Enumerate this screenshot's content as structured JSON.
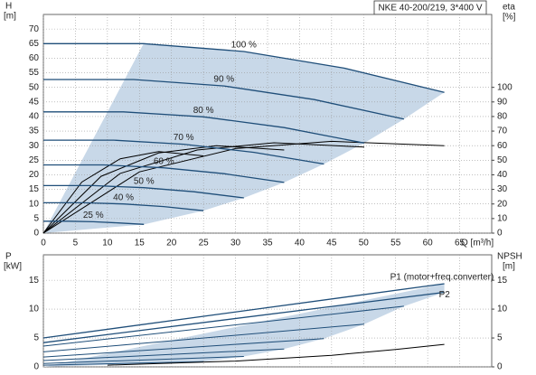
{
  "chart_data": [
    {
      "type": "line",
      "title": "NKE 40-200/219, 3*400 V",
      "y_label": "H",
      "y_unit": "[m]",
      "y2_label": "eta",
      "y2_unit": "[%]",
      "x_label": "Q [m³/h]",
      "xlim": [
        0,
        70
      ],
      "xticks": [
        0,
        5,
        10,
        15,
        20,
        25,
        30,
        35,
        40,
        45,
        50,
        55,
        60,
        65
      ],
      "x_tick_labels": true,
      "ylim": [
        0,
        75
      ],
      "yticks": [
        0,
        5,
        10,
        15,
        20,
        25,
        30,
        35,
        40,
        45,
        50,
        55,
        60,
        65,
        70
      ],
      "y2lim": [
        0,
        150
      ],
      "y2ticks": [
        0,
        10,
        20,
        30,
        40,
        50,
        60,
        70,
        80,
        90,
        100
      ],
      "grid": true,
      "color": "#1f4e79",
      "range_color": "#c8d8e8",
      "secondary_color": "#000000",
      "series": [
        {
          "name": "100 %",
          "x": [
            0,
            15.65,
            31.3,
            46.95,
            62.6
          ],
          "values": [
            65,
            65,
            62.3,
            56.6,
            48.3
          ]
        },
        {
          "name": "90 %",
          "x": [
            0,
            14.1,
            28.2,
            42.3,
            56.3
          ],
          "values": [
            52.7,
            52.7,
            50.5,
            45.8,
            39.1
          ]
        },
        {
          "name": "80 %",
          "x": [
            0,
            12.5,
            25,
            37.6,
            50.1
          ],
          "values": [
            41.6,
            41.6,
            39.9,
            36.2,
            30.9
          ]
        },
        {
          "name": "70 %",
          "x": [
            0,
            11,
            21.9,
            32.9,
            43.8
          ],
          "values": [
            31.9,
            31.9,
            30.5,
            27.7,
            23.7
          ]
        },
        {
          "name": "60 %",
          "x": [
            0,
            9.4,
            18.8,
            28.2,
            37.6
          ],
          "values": [
            23.4,
            23.4,
            22.4,
            20.4,
            17.4
          ]
        },
        {
          "name": "50 %",
          "x": [
            0,
            7.8,
            15.7,
            23.5,
            31.3
          ],
          "values": [
            16.3,
            16.3,
            15.6,
            14.2,
            12.1
          ]
        },
        {
          "name": "40 %",
          "x": [
            0,
            6.3,
            12.5,
            18.8,
            25
          ],
          "values": [
            10.4,
            10.4,
            10,
            9.1,
            7.7
          ]
        },
        {
          "name": "25 %",
          "x": [
            0,
            3.9,
            7.8,
            11.7,
            15.7
          ],
          "values": [
            4.1,
            4.1,
            3.9,
            3.5,
            3.0
          ]
        }
      ],
      "secondary": [
        {
          "axis": "y2",
          "x": [
            0,
            15,
            30,
            45,
            62.6
          ],
          "values": [
            0,
            42,
            58,
            63,
            60
          ]
        },
        {
          "axis": "y2",
          "x": [
            0,
            12,
            24,
            36,
            50.1
          ],
          "values": [
            0,
            41,
            57,
            62,
            59
          ]
        },
        {
          "axis": "y2",
          "x": [
            0,
            9,
            18,
            27,
            37.6
          ],
          "values": [
            0,
            39,
            55,
            60,
            57
          ]
        },
        {
          "axis": "y2",
          "x": [
            0,
            6,
            12,
            18,
            25
          ],
          "values": [
            0,
            35,
            51,
            56,
            53
          ]
        }
      ]
    },
    {
      "type": "line",
      "y_label": "P",
      "y_unit": "[kW]",
      "y2_label": "NPSH",
      "y2_unit": "[m]",
      "xlim": [
        0,
        70
      ],
      "xticks": [
        0,
        5,
        10,
        15,
        20,
        25,
        30,
        35,
        40,
        45,
        50,
        55,
        60,
        65
      ],
      "x_tick_labels": false,
      "ylim": [
        0,
        19.4
      ],
      "yticks": [
        0,
        5,
        10,
        15
      ],
      "y2lim": [
        0,
        19.4
      ],
      "y2ticks": [
        0,
        5,
        10,
        15
      ],
      "grid": true,
      "color": "#1f4e79",
      "range_color": "#c8d8e8",
      "secondary_color": "#000000",
      "series": [
        {
          "name": "P1 (motor+freq.converter)",
          "x": [
            0,
            62.6
          ],
          "values": [
            5.0,
            14.4
          ]
        },
        {
          "name": "P2",
          "x": [
            0,
            62.6
          ],
          "values": [
            4.2,
            12.9
          ]
        }
      ],
      "reduced": [
        {
          "x": [
            0,
            56.3
          ],
          "values": [
            3.6,
            10.5
          ]
        },
        {
          "x": [
            0,
            50.1
          ],
          "values": [
            2.6,
            7.4
          ]
        },
        {
          "x": [
            0,
            43.8
          ],
          "values": [
            1.7,
            4.9
          ]
        },
        {
          "x": [
            0,
            37.6
          ],
          "values": [
            1.1,
            3.1
          ]
        },
        {
          "x": [
            0,
            31.3
          ],
          "values": [
            0.6,
            1.8
          ]
        },
        {
          "x": [
            0,
            25
          ],
          "values": [
            0.3,
            0.9
          ]
        }
      ],
      "secondary": [
        {
          "axis": "y2",
          "x": [
            10,
            30,
            45,
            55,
            62.6
          ],
          "values": [
            0.3,
            1,
            2,
            3,
            3.9
          ]
        }
      ]
    }
  ]
}
